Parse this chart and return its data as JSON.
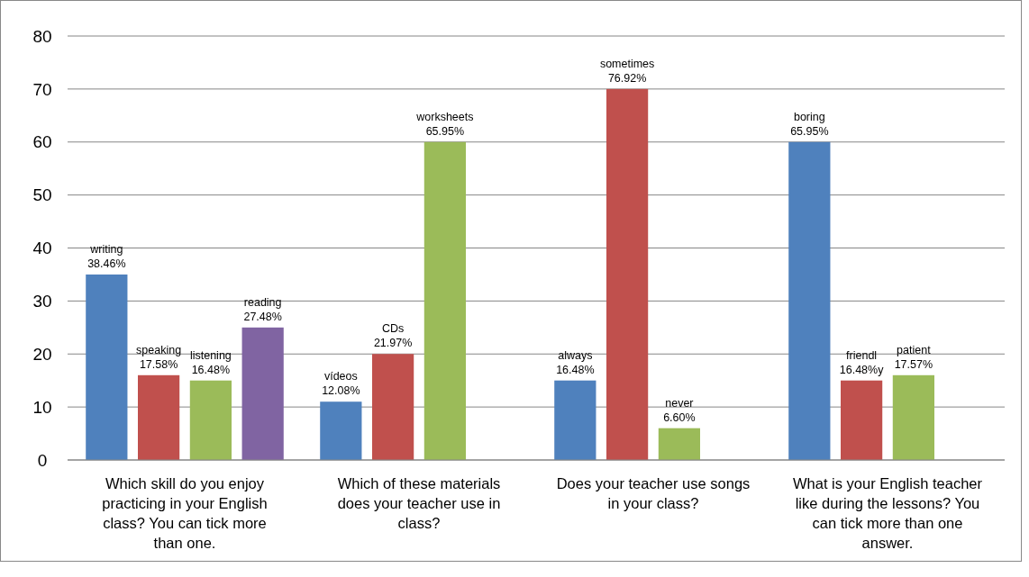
{
  "chart_data": {
    "type": "bar",
    "categories": [
      "Which skill do you enjoy practicing in your English class? You can tick more than one.",
      "Which of these materials does your teacher use in class?",
      "Does your teacher use songs in your class?",
      "What is your English teacher like during the lessons? You can tick more than one answer."
    ],
    "series": [
      {
        "color": "#4f81bd",
        "values": [
          35,
          11,
          15,
          60
        ],
        "value_labels": [
          "writing\n38.46%",
          "vídeos\n12.08%",
          "always\n16.48%",
          "boring\n65.95%"
        ]
      },
      {
        "color": "#c0504d",
        "values": [
          16,
          20,
          70,
          15
        ],
        "value_labels": [
          "speaking\n17.58%",
          "CDs\n21.97%",
          "sometimes\n76.92%",
          "friendl\n16.48%y"
        ]
      },
      {
        "color": "#9bbb59",
        "values": [
          15,
          60,
          6,
          16
        ],
        "value_labels": [
          "listening\n16.48%",
          "worksheets\n65.95%",
          "never\n6.60%",
          "patient\n17.57%"
        ]
      },
      {
        "color": "#8064a2",
        "values": [
          25,
          null,
          null,
          null
        ],
        "value_labels": [
          "reading\n27.48%",
          null,
          null,
          null
        ]
      }
    ],
    "ylim": [
      0,
      80
    ],
    "yticks": [
      0,
      10,
      20,
      30,
      40,
      50,
      60,
      70,
      80
    ],
    "grid": "y"
  }
}
